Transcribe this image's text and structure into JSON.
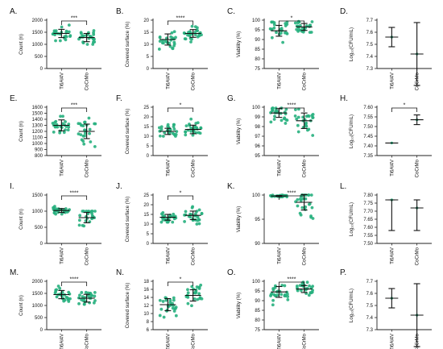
{
  "colors": {
    "dot": "#27b07e",
    "dot_dark": "#1a7f58",
    "axis": "#222222",
    "bar": "#111111"
  },
  "chart_data": [
    {
      "panel": "A.",
      "type": "scatter",
      "ylabel": "Count (n)",
      "ylim": [
        0,
        2000
      ],
      "yticks": [
        0,
        500,
        1000,
        1500,
        2000
      ],
      "tick_labels": [
        "0",
        "500",
        "1000",
        "1500",
        "2000"
      ],
      "categories": [
        "Ti6Al4V",
        "CoCrMo"
      ],
      "series": [
        {
          "mean": 1450,
          "sd": 170,
          "min": 1150,
          "max": 1800
        },
        {
          "mean": 1280,
          "sd": 170,
          "min": 1000,
          "max": 1650
        }
      ],
      "significance": "***"
    },
    {
      "panel": "B.",
      "type": "scatter",
      "ylabel": "Covered surface (%)",
      "ylim": [
        0,
        20
      ],
      "yticks": [
        0,
        5,
        10,
        15,
        20
      ],
      "tick_labels": [
        "0",
        "5",
        "10",
        "15",
        "20"
      ],
      "categories": [
        "Ti6Al4V",
        "CoCrMo"
      ],
      "series": [
        {
          "mean": 12,
          "sd": 2.3,
          "min": 8,
          "max": 16.5
        },
        {
          "mean": 14.5,
          "sd": 1.6,
          "min": 11,
          "max": 18.5
        }
      ],
      "significance": "****"
    },
    {
      "panel": "C.",
      "type": "scatter",
      "ylabel": "Viability (%)",
      "ylim": [
        75,
        100
      ],
      "yticks": [
        75,
        80,
        85,
        90,
        95,
        100
      ],
      "tick_labels": [
        "75",
        "80",
        "85",
        "90",
        "95",
        "100"
      ],
      "categories": [
        "Ti6Al4V",
        "CoCrMo"
      ],
      "series": [
        {
          "mean": 94.5,
          "sd": 2.8,
          "min": 81,
          "max": 99
        },
        {
          "mean": 96.5,
          "sd": 1.8,
          "min": 90,
          "max": 99.5
        }
      ],
      "significance": "*"
    },
    {
      "panel": "D.",
      "type": "scatter",
      "ylabel": "Log₁₀(CFU/mL)",
      "ylim": [
        7.3,
        7.7
      ],
      "yticks": [
        7.3,
        7.4,
        7.5,
        7.6,
        7.7
      ],
      "tick_labels": [
        "7.3",
        "7.4",
        "7.5",
        "7.6",
        "7.7"
      ],
      "categories": [
        "Ti6Al4V",
        "CoCrMo"
      ],
      "series": [
        {
          "mean": 7.56,
          "sd": 0.08,
          "min": 7.56,
          "max": 7.56
        },
        {
          "mean": 7.42,
          "sd": 0.26,
          "min": 7.42,
          "max": 7.42
        }
      ],
      "significance": ""
    },
    {
      "panel": "E.",
      "type": "scatter",
      "ylabel": "Count (n)",
      "ylim": [
        800,
        1600
      ],
      "yticks": [
        800,
        900,
        1000,
        1100,
        1200,
        1300,
        1400,
        1500,
        1600
      ],
      "tick_labels": [
        "800",
        "900",
        "1000",
        "1100",
        "1200",
        "1300",
        "1400",
        "1500",
        "1600"
      ],
      "categories": [
        "Ti6Al4V",
        "CoCrMo"
      ],
      "series": [
        {
          "mean": 1300,
          "sd": 90,
          "min": 1150,
          "max": 1450
        },
        {
          "mean": 1200,
          "sd": 120,
          "min": 930,
          "max": 1420
        }
      ],
      "significance": "***"
    },
    {
      "panel": "F.",
      "type": "scatter",
      "ylabel": "Covered surface (%)",
      "ylim": [
        0,
        25
      ],
      "yticks": [
        0,
        5,
        10,
        15,
        20,
        25
      ],
      "tick_labels": [
        "0",
        "5",
        "10",
        "15",
        "20",
        "25"
      ],
      "categories": [
        "Ti6Al4V",
        "CoCrMo"
      ],
      "series": [
        {
          "mean": 12.5,
          "sd": 1.6,
          "min": 10,
          "max": 16
        },
        {
          "mean": 13.5,
          "sd": 2.2,
          "min": 10,
          "max": 20
        }
      ],
      "significance": "*"
    },
    {
      "panel": "G.",
      "type": "scatter",
      "ylabel": "Viability (%)",
      "ylim": [
        95,
        100
      ],
      "yticks": [
        95,
        96,
        97,
        98,
        99,
        100
      ],
      "tick_labels": [
        "95",
        "96",
        "97",
        "98",
        "99",
        "100"
      ],
      "categories": [
        "Ti6Al4V",
        "CoCrMo"
      ],
      "series": [
        {
          "mean": 99.4,
          "sd": 0.45,
          "min": 96.2,
          "max": 99.9
        },
        {
          "mean": 98.6,
          "sd": 0.8,
          "min": 96.4,
          "max": 99.8
        }
      ],
      "significance": "****"
    },
    {
      "panel": "H.",
      "type": "scatter",
      "ylabel": "Log₁₀(CFU/mL)",
      "ylim": [
        7.35,
        7.6
      ],
      "yticks": [
        7.35,
        7.4,
        7.45,
        7.5,
        7.55,
        7.6
      ],
      "tick_labels": [
        "7.35",
        "7.40",
        "7.45",
        "7.50",
        "7.55",
        "7.60"
      ],
      "categories": [
        "Ti6Al4V",
        "CoCrMo"
      ],
      "series": [
        {
          "mean": 7.415,
          "sd": 0,
          "min": 7.415,
          "max": 7.415
        },
        {
          "mean": 7.535,
          "sd": 0.025,
          "min": 7.535,
          "max": 7.535
        }
      ],
      "significance": "*"
    },
    {
      "panel": "I.",
      "type": "scatter",
      "ylabel": "Count (n)",
      "ylim": [
        0,
        1500
      ],
      "yticks": [
        0,
        500,
        1000,
        1500
      ],
      "tick_labels": [
        "0",
        "500",
        "1000",
        "1500"
      ],
      "categories": [
        "Ti6Al4V",
        "CoCrMo"
      ],
      "series": [
        {
          "mean": 1020,
          "sd": 60,
          "min": 900,
          "max": 1150
        },
        {
          "mean": 800,
          "sd": 160,
          "min": 450,
          "max": 1000
        }
      ],
      "significance": "****"
    },
    {
      "panel": "J.",
      "type": "scatter",
      "ylabel": "Covered surface (%)",
      "ylim": [
        0,
        25
      ],
      "yticks": [
        0,
        5,
        10,
        15,
        20,
        25
      ],
      "tick_labels": [
        "0",
        "5",
        "10",
        "15",
        "20",
        "25"
      ],
      "categories": [
        "Ti6Al4V",
        "CoCrMo"
      ],
      "series": [
        {
          "mean": 13.5,
          "sd": 1.5,
          "min": 11,
          "max": 16
        },
        {
          "mean": 14.5,
          "sd": 2.2,
          "min": 10,
          "max": 19
        }
      ],
      "significance": "*"
    },
    {
      "panel": "K.",
      "type": "scatter",
      "ylabel": "Viability (%)",
      "ylim": [
        90,
        100
      ],
      "yticks": [
        90,
        95,
        100
      ],
      "tick_labels": [
        "90",
        "95",
        "100"
      ],
      "categories": [
        "Ti6Al4V",
        "CoCrMo"
      ],
      "series": [
        {
          "mean": 99.8,
          "sd": 0.1,
          "min": 99.5,
          "max": 100
        },
        {
          "mean": 98.5,
          "sd": 1.6,
          "min": 91,
          "max": 100
        }
      ],
      "significance": "****"
    },
    {
      "panel": "L.",
      "type": "scatter",
      "ylabel": "Log₁₀(CFU/mL)",
      "ylim": [
        7.5,
        7.8
      ],
      "yticks": [
        7.5,
        7.55,
        7.6,
        7.65,
        7.7,
        7.75,
        7.8
      ],
      "tick_labels": [
        "7.50",
        "7.55",
        "7.60",
        "7.65",
        "7.70",
        "7.75",
        "7.80"
      ],
      "categories": [
        "Ti6Al4V",
        "CoCrMo"
      ],
      "series": [
        {
          "mean": 7.77,
          "sd": 0,
          "min": 7.77,
          "max": 7.77
        },
        {
          "mean": 7.72,
          "sd": 0.06,
          "min": 7.72,
          "max": 7.72
        }
      ],
      "range_bars": [
        [
          7.58,
          7.77
        ],
        [
          7.58,
          7.77
        ]
      ],
      "significance": ""
    },
    {
      "panel": "M.",
      "type": "scatter",
      "ylabel": "Count (n)",
      "ylim": [
        0,
        2000
      ],
      "yticks": [
        0,
        500,
        1000,
        1500,
        2000
      ],
      "tick_labels": [
        "0",
        "500",
        "1000",
        "1500",
        "2000"
      ],
      "categories": [
        "Ti6Al4V",
        "CoCrMo"
      ],
      "series": [
        {
          "mean": 1450,
          "sd": 170,
          "min": 1150,
          "max": 1800
        },
        {
          "mean": 1300,
          "sd": 160,
          "min": 1050,
          "max": 1650
        }
      ],
      "significance": "****"
    },
    {
      "panel": "N.",
      "type": "scatter",
      "ylabel": "Covered surface (%)",
      "ylim": [
        6,
        18
      ],
      "yticks": [
        6,
        8,
        10,
        12,
        14,
        16,
        18
      ],
      "tick_labels": [
        "6",
        "8",
        "10",
        "12",
        "14",
        "16",
        "18"
      ],
      "categories": [
        "Ti6Al4V",
        "CoCrMo"
      ],
      "series": [
        {
          "mean": 12.2,
          "sd": 1.5,
          "min": 9,
          "max": 15
        },
        {
          "mean": 14.5,
          "sd": 1.4,
          "min": 11.5,
          "max": 17.5
        }
      ],
      "significance": "*"
    },
    {
      "panel": "O.",
      "type": "scatter",
      "ylabel": "Viability (%)",
      "ylim": [
        75,
        100
      ],
      "yticks": [
        75,
        80,
        85,
        90,
        95,
        100
      ],
      "tick_labels": [
        "75",
        "80",
        "85",
        "90",
        "95",
        "100"
      ],
      "categories": [
        "Ti6Al4V",
        "CoCrMo"
      ],
      "series": [
        {
          "mean": 94.5,
          "sd": 2.8,
          "min": 81,
          "max": 99
        },
        {
          "mean": 96,
          "sd": 1.8,
          "min": 90,
          "max": 99.5
        }
      ],
      "significance": "****"
    },
    {
      "panel": "P.",
      "type": "scatter",
      "ylabel": "Log₁₀(CFU/mL)",
      "ylim": [
        7.3,
        7.7
      ],
      "yticks": [
        7.3,
        7.4,
        7.5,
        7.6,
        7.7
      ],
      "tick_labels": [
        "7.3",
        "7.4",
        "7.5",
        "7.6",
        "7.7"
      ],
      "categories": [
        "Ti6Al4V",
        "CoCrMo"
      ],
      "series": [
        {
          "mean": 7.56,
          "sd": 0.08,
          "min": 7.56,
          "max": 7.56
        },
        {
          "mean": 7.42,
          "sd": 0.26,
          "min": 7.42,
          "max": 7.42
        }
      ],
      "significance": ""
    }
  ]
}
